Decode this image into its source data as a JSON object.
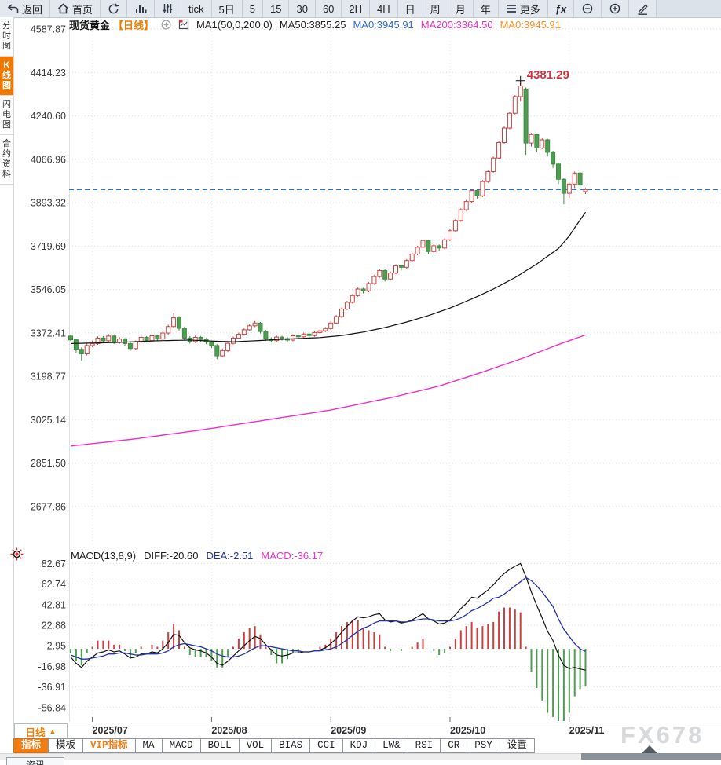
{
  "toolbar": {
    "items": [
      {
        "name": "back-button",
        "icon": "back",
        "label": "返回"
      },
      {
        "name": "home-button",
        "icon": "home",
        "label": "首页"
      },
      {
        "name": "refresh-button",
        "icon": "refresh",
        "label": ""
      },
      {
        "name": "chart-type-button",
        "icon": "bar-chart",
        "label": ""
      },
      {
        "name": "indicator-params-button",
        "icon": "sliders",
        "label": ""
      },
      {
        "name": "interval-tick-button",
        "label": "tick"
      },
      {
        "name": "interval-5day-button",
        "label": "5日"
      },
      {
        "name": "interval-5-button",
        "label": "5"
      },
      {
        "name": "interval-15-button",
        "label": "15"
      },
      {
        "name": "interval-30-button",
        "label": "30"
      },
      {
        "name": "interval-60-button",
        "label": "60"
      },
      {
        "name": "interval-2h-button",
        "label": "2H"
      },
      {
        "name": "interval-4h-button",
        "label": "4H"
      },
      {
        "name": "interval-day-button",
        "label": "日"
      },
      {
        "name": "interval-week-button",
        "label": "周"
      },
      {
        "name": "interval-month-button",
        "label": "月"
      },
      {
        "name": "interval-year-button",
        "label": "年"
      },
      {
        "name": "more-button",
        "icon": "menu",
        "label": "更多"
      },
      {
        "name": "formula-button",
        "icon": "fx",
        "label": ""
      },
      {
        "name": "zoom-out-button",
        "icon": "zoom-out",
        "label": ""
      },
      {
        "name": "zoom-in-button",
        "icon": "zoom-in",
        "label": ""
      },
      {
        "name": "draw-button",
        "icon": "pencil",
        "label": ""
      }
    ]
  },
  "sidebar": {
    "tabs": [
      {
        "label": "分时图",
        "active": false
      },
      {
        "label": "K线图",
        "active": true
      },
      {
        "label": "闪电图",
        "active": false
      },
      {
        "label": "合约资料",
        "active": false
      }
    ]
  },
  "title": {
    "symbol": "现货黄金",
    "period": "【日线】",
    "ma_settings": "MA1(50,0,200,0)",
    "ma50": "MA50:3855.25",
    "ma0_fast": "MA0:3945.91",
    "ma200": "MA200:3364.50",
    "ma0_slow": "MA0:3945.91"
  },
  "chart_data": {
    "type": "candlestick+macd",
    "main": {
      "y_tick_labels": [
        "4587.87",
        "4414.23",
        "4240.60",
        "4066.96",
        "3893.32",
        "3719.69",
        "3546.05",
        "3372.41",
        "3198.77",
        "3025.14",
        "2851.50",
        "2677.86"
      ],
      "x_ticks": [
        {
          "label": "2025/07",
          "index": 4
        },
        {
          "label": "2025/08",
          "index": 26
        },
        {
          "label": "2025/09",
          "index": 48
        },
        {
          "label": "2025/10",
          "index": 70
        },
        {
          "label": "2025/11",
          "index": 92
        }
      ],
      "last_price": 3945.91,
      "high_annotation": {
        "label": "4381.29",
        "value": 4381.29,
        "index": 83
      },
      "candles": [
        [
          3360,
          3366,
          3340,
          3345
        ],
        [
          3345,
          3350,
          3292,
          3307
        ],
        [
          3307,
          3315,
          3262,
          3289
        ],
        [
          3289,
          3330,
          3283,
          3322
        ],
        [
          3322,
          3342,
          3316,
          3330
        ],
        [
          3330,
          3358,
          3325,
          3352
        ],
        [
          3352,
          3360,
          3332,
          3341
        ],
        [
          3341,
          3368,
          3336,
          3360
        ],
        [
          3360,
          3364,
          3328,
          3335
        ],
        [
          3335,
          3355,
          3329,
          3348
        ],
        [
          3348,
          3352,
          3322,
          3330
        ],
        [
          3330,
          3338,
          3300,
          3310
        ],
        [
          3310,
          3342,
          3305,
          3337
        ],
        [
          3337,
          3362,
          3331,
          3355
        ],
        [
          3355,
          3360,
          3335,
          3342
        ],
        [
          3342,
          3368,
          3337,
          3361
        ],
        [
          3361,
          3366,
          3340,
          3348
        ],
        [
          3348,
          3378,
          3343,
          3372
        ],
        [
          3372,
          3405,
          3366,
          3398
        ],
        [
          3398,
          3452,
          3392,
          3433
        ],
        [
          3433,
          3440,
          3382,
          3391
        ],
        [
          3391,
          3398,
          3344,
          3352
        ],
        [
          3352,
          3360,
          3330,
          3338
        ],
        [
          3338,
          3362,
          3332,
          3355
        ],
        [
          3355,
          3360,
          3338,
          3346
        ],
        [
          3346,
          3352,
          3328,
          3337
        ],
        [
          3337,
          3342,
          3312,
          3322
        ],
        [
          3322,
          3328,
          3268,
          3281
        ],
        [
          3281,
          3310,
          3275,
          3302
        ],
        [
          3302,
          3338,
          3296,
          3331
        ],
        [
          3331,
          3358,
          3326,
          3352
        ],
        [
          3352,
          3374,
          3347,
          3367
        ],
        [
          3367,
          3392,
          3362,
          3385
        ],
        [
          3385,
          3408,
          3380,
          3401
        ],
        [
          3401,
          3420,
          3396,
          3412
        ],
        [
          3412,
          3416,
          3370,
          3378
        ],
        [
          3378,
          3384,
          3340,
          3348
        ],
        [
          3348,
          3355,
          3334,
          3342
        ],
        [
          3342,
          3362,
          3337,
          3356
        ],
        [
          3356,
          3361,
          3342,
          3350
        ],
        [
          3350,
          3356,
          3336,
          3344
        ],
        [
          3344,
          3367,
          3339,
          3361
        ],
        [
          3361,
          3366,
          3349,
          3357
        ],
        [
          3357,
          3374,
          3352,
          3368
        ],
        [
          3368,
          3373,
          3354,
          3362
        ],
        [
          3362,
          3380,
          3357,
          3374
        ],
        [
          3374,
          3387,
          3369,
          3381
        ],
        [
          3381,
          3396,
          3376,
          3390
        ],
        [
          3390,
          3418,
          3385,
          3412
        ],
        [
          3412,
          3444,
          3407,
          3438
        ],
        [
          3438,
          3474,
          3433,
          3468
        ],
        [
          3468,
          3501,
          3463,
          3495
        ],
        [
          3495,
          3528,
          3490,
          3522
        ],
        [
          3522,
          3554,
          3517,
          3548
        ],
        [
          3548,
          3553,
          3530,
          3541
        ],
        [
          3541,
          3576,
          3536,
          3570
        ],
        [
          3570,
          3604,
          3565,
          3598
        ],
        [
          3598,
          3628,
          3593,
          3622
        ],
        [
          3622,
          3626,
          3578,
          3588
        ],
        [
          3588,
          3618,
          3583,
          3612
        ],
        [
          3612,
          3647,
          3607,
          3641
        ],
        [
          3641,
          3646,
          3622,
          3635
        ],
        [
          3635,
          3668,
          3630,
          3662
        ],
        [
          3662,
          3694,
          3657,
          3688
        ],
        [
          3688,
          3721,
          3683,
          3715
        ],
        [
          3715,
          3748,
          3710,
          3742
        ],
        [
          3742,
          3746,
          3688,
          3698
        ],
        [
          3698,
          3727,
          3693,
          3721
        ],
        [
          3721,
          3726,
          3701,
          3712
        ],
        [
          3712,
          3751,
          3707,
          3745
        ],
        [
          3745,
          3787,
          3740,
          3781
        ],
        [
          3781,
          3828,
          3776,
          3822
        ],
        [
          3822,
          3871,
          3817,
          3865
        ],
        [
          3865,
          3904,
          3860,
          3898
        ],
        [
          3898,
          3948,
          3893,
          3942
        ],
        [
          3942,
          3947,
          3910,
          3921
        ],
        [
          3921,
          3984,
          3916,
          3978
        ],
        [
          3978,
          4024,
          3973,
          4018
        ],
        [
          4018,
          4078,
          4013,
          4072
        ],
        [
          4072,
          4140,
          4067,
          4134
        ],
        [
          4134,
          4198,
          4129,
          4192
        ],
        [
          4192,
          4257,
          4187,
          4251
        ],
        [
          4251,
          4324,
          4246,
          4318
        ],
        [
          4318,
          4381.29,
          4298,
          4360
        ],
        [
          4348,
          4354,
          4085,
          4132
        ],
        [
          4132,
          4172,
          4118,
          4166
        ],
        [
          4166,
          4170,
          4096,
          4112
        ],
        [
          4112,
          4151,
          4107,
          4145
        ],
        [
          4145,
          4149,
          4078,
          4095
        ],
        [
          4095,
          4101,
          4032,
          4048
        ],
        [
          4048,
          4052,
          3968,
          3987
        ],
        [
          3987,
          3992,
          3887,
          3931
        ],
        [
          3931,
          3974,
          3912,
          3968
        ],
        [
          3968,
          4018,
          3952,
          4012
        ],
        [
          4012,
          4016,
          3942,
          3964
        ],
        [
          3938,
          3952,
          3928,
          3945.91
        ]
      ],
      "ma50_samples": [
        [
          0,
          3330
        ],
        [
          8,
          3334
        ],
        [
          16,
          3341
        ],
        [
          22,
          3344
        ],
        [
          26,
          3340
        ],
        [
          30,
          3337
        ],
        [
          34,
          3341
        ],
        [
          38,
          3346
        ],
        [
          42,
          3350
        ],
        [
          46,
          3354
        ],
        [
          50,
          3362
        ],
        [
          54,
          3376
        ],
        [
          58,
          3394
        ],
        [
          62,
          3416
        ],
        [
          66,
          3442
        ],
        [
          70,
          3472
        ],
        [
          74,
          3508
        ],
        [
          78,
          3548
        ],
        [
          82,
          3594
        ],
        [
          86,
          3648
        ],
        [
          90,
          3710
        ],
        [
          92,
          3760
        ],
        [
          93,
          3793
        ],
        [
          95,
          3855.25
        ]
      ],
      "ma200_samples": [
        [
          0,
          2920
        ],
        [
          12,
          2949
        ],
        [
          24,
          2984
        ],
        [
          36,
          3024
        ],
        [
          48,
          3064
        ],
        [
          60,
          3118
        ],
        [
          68,
          3160
        ],
        [
          76,
          3216
        ],
        [
          84,
          3276
        ],
        [
          90,
          3326
        ],
        [
          95,
          3364.5
        ]
      ]
    },
    "macd": {
      "name_label": "MACD(13,8,9)",
      "diff_label": "DIFF:-20.60",
      "dea_label": "DEA:-2.51",
      "macd_label": "MACD:-36.17",
      "y_tick_labels": [
        "82.67",
        "62.74",
        "42.81",
        "22.88",
        "2.95",
        "-16.98",
        "-36.91",
        "-56.84"
      ],
      "diff": [
        -8,
        -14,
        -18,
        -12,
        -8,
        -4,
        -3,
        -1,
        -3,
        -2,
        -5,
        -9,
        -8,
        -5,
        -5,
        -3,
        -4,
        0,
        6,
        14,
        13,
        6,
        1,
        -1,
        -2,
        -4,
        -8,
        -14,
        -16,
        -12,
        -7,
        -2,
        3,
        8,
        12,
        10,
        4,
        -1,
        -6,
        -7,
        -6,
        -4,
        -4,
        -3,
        -3,
        -2,
        -1,
        1,
        5,
        10,
        16,
        22,
        27,
        31,
        30,
        31,
        33,
        34,
        28,
        26,
        27,
        25,
        26,
        28,
        31,
        34,
        29,
        27,
        24,
        25,
        28,
        33,
        39,
        44,
        50,
        49,
        53,
        57,
        62,
        68,
        73,
        77,
        80,
        82.67,
        70,
        55,
        42,
        30,
        17,
        8,
        -6,
        -16,
        -19,
        -18,
        -19.5,
        -20.6
      ],
      "dea": [
        -6,
        -8,
        -10,
        -10,
        -9,
        -8,
        -7,
        -5,
        -5,
        -4,
        -4,
        -5,
        -6,
        -6,
        -5,
        -5,
        -5,
        -4,
        -2,
        2,
        4,
        5,
        4,
        3,
        2,
        0,
        -2,
        -5,
        -7,
        -8,
        -8,
        -7,
        -5,
        -2,
        1,
        3,
        3,
        2,
        1,
        0,
        -1,
        -2,
        -2,
        -3,
        -3,
        -2,
        -2,
        -1,
        0,
        2,
        5,
        9,
        13,
        17,
        20,
        22,
        25,
        27,
        27,
        27,
        27,
        26,
        26,
        27,
        28,
        29,
        29,
        28,
        27,
        27,
        27,
        28,
        30,
        33,
        37,
        39,
        42,
        45,
        49,
        50,
        53,
        57,
        61,
        65,
        69,
        66,
        61,
        55,
        48,
        41,
        29,
        19,
        12,
        5,
        0,
        -2.51
      ]
    },
    "colors": {
      "up": "#c9403e",
      "down": "#4d9e50",
      "down_stroke": "#3f8a44",
      "ma50": "#111111",
      "ma200": "#ee2fc8",
      "diff": "#111111",
      "dea": "#2431a5",
      "last_price_line": "#1677f0",
      "annotation": "#cf3341",
      "grid": "#dcdcdc",
      "axis_text": "#3a3a3a",
      "accent_orange": "#f07c00"
    }
  },
  "bottom": {
    "period_label": "日线",
    "period_arrow": "▲",
    "indicators": [
      {
        "label": "指标",
        "state": "active"
      },
      {
        "label": "模板",
        "state": "normal"
      },
      {
        "label": "VIP指标",
        "state": "vip"
      },
      {
        "label": "MA",
        "state": "normal"
      },
      {
        "label": "MACD",
        "state": "normal"
      },
      {
        "label": "BOLL",
        "state": "normal"
      },
      {
        "label": "VOL",
        "state": "normal"
      },
      {
        "label": "BIAS",
        "state": "normal"
      },
      {
        "label": "CCI",
        "state": "normal"
      },
      {
        "label": "KDJ",
        "state": "normal"
      },
      {
        "label": "LW&",
        "state": "normal"
      },
      {
        "label": "RSI",
        "state": "normal"
      },
      {
        "label": "CR",
        "state": "normal"
      },
      {
        "label": "PSY",
        "state": "normal"
      },
      {
        "label": "设置",
        "state": "normal"
      }
    ],
    "news_tab": "资讯"
  },
  "watermark": "FX678"
}
